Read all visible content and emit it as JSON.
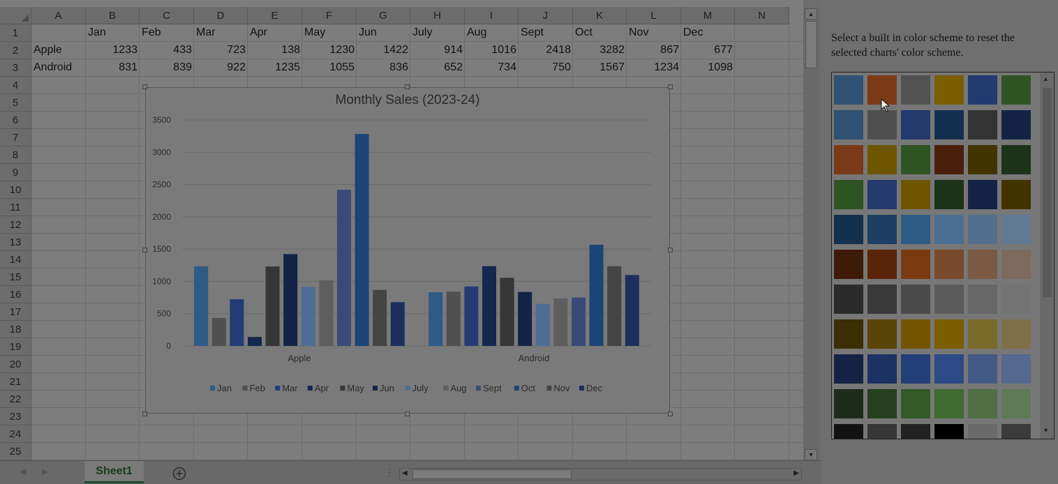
{
  "columns": [
    "A",
    "B",
    "C",
    "D",
    "E",
    "F",
    "G",
    "H",
    "I",
    "J",
    "K",
    "L",
    "M",
    "N"
  ],
  "rows": [
    "1",
    "2",
    "3",
    "4",
    "5",
    "6",
    "7",
    "8",
    "9",
    "10",
    "11",
    "12",
    "13",
    "14",
    "15",
    "16",
    "17",
    "18",
    "19",
    "20",
    "21",
    "22",
    "23",
    "24",
    "25"
  ],
  "table": {
    "header": [
      "Jan",
      "Feb",
      "Mar",
      "Apr",
      "May",
      "Jun",
      "July",
      "Aug",
      "Sept",
      "Oct",
      "Nov",
      "Dec"
    ],
    "data": [
      {
        "label": "Apple",
        "values": [
          "1233",
          "433",
          "723",
          "138",
          "1230",
          "1422",
          "914",
          "1016",
          "2418",
          "3282",
          "867",
          "677"
        ]
      },
      {
        "label": "Android",
        "values": [
          "831",
          "839",
          "922",
          "1235",
          "1055",
          "836",
          "652",
          "734",
          "750",
          "1567",
          "1234",
          "1098"
        ]
      }
    ]
  },
  "chart_data": {
    "type": "bar",
    "title": "Monthly Sales (2023-24)",
    "categories": [
      "Apple",
      "Android"
    ],
    "series": [
      {
        "name": "Jan",
        "color": "#2e5a86",
        "values": [
          1233,
          831
        ]
      },
      {
        "name": "Feb",
        "color": "#4f4f4f",
        "values": [
          433,
          839
        ]
      },
      {
        "name": "Mar",
        "color": "#233c78",
        "values": [
          723,
          922
        ]
      },
      {
        "name": "Apr",
        "color": "#142850",
        "values": [
          138,
          1235
        ]
      },
      {
        "name": "May",
        "color": "#363636",
        "values": [
          1230,
          1055
        ]
      },
      {
        "name": "Jun",
        "color": "#142345",
        "values": [
          1422,
          836
        ]
      },
      {
        "name": "July",
        "color": "#4e6d94",
        "values": [
          914,
          652
        ]
      },
      {
        "name": "Aug",
        "color": "#5e5e5e",
        "values": [
          1016,
          734
        ]
      },
      {
        "name": "Sept",
        "color": "#3a4a78",
        "values": [
          2418,
          750
        ]
      },
      {
        "name": "Oct",
        "color": "#1c4474",
        "values": [
          3282,
          1567
        ]
      },
      {
        "name": "Nov",
        "color": "#444444",
        "values": [
          867,
          1234
        ]
      },
      {
        "name": "Dec",
        "color": "#1c2f5c",
        "values": [
          677,
          1098
        ]
      }
    ],
    "ylim": [
      0,
      3500
    ],
    "yticks": [
      "0",
      "500",
      "1000",
      "1500",
      "2000",
      "2500",
      "3000",
      "3500"
    ],
    "grid": true,
    "legend": "bottom"
  },
  "sheet_tab": "Sheet1",
  "add_sheet_icon": "plus-circle-icon",
  "pane": {
    "description": "Select a built in color scheme to reset the selected charts' color scheme."
  },
  "palette": [
    [
      "#2f5173",
      "#7a3a18",
      "#525252",
      "#7a5e00",
      "#233a6e",
      "#2f5424"
    ],
    [
      "#2f5173",
      "#4f4f4f",
      "#233a6e",
      "#14304f",
      "#333333",
      "#142345"
    ],
    [
      "#7a3a18",
      "#6e5500",
      "#2f5424",
      "#4a1f0c",
      "#433300",
      "#1c331a"
    ],
    [
      "#2f5424",
      "#233a6e",
      "#6e5500",
      "#1c331a",
      "#142345",
      "#433300"
    ],
    [
      "#14304f",
      "#1c3e62",
      "#2e5a86",
      "#4a6e92",
      "#536f8e",
      "#607a94"
    ],
    [
      "#3e1a08",
      "#5a2408",
      "#7a3a10",
      "#7a4a2c",
      "#7a5a44",
      "#7f6a5e"
    ],
    [
      "#2b2b2b",
      "#3a3a3a",
      "#4a4a4a",
      "#5a5a5a",
      "#666666",
      "#737373"
    ],
    [
      "#3c2d05",
      "#5a4306",
      "#735500",
      "#7a5e00",
      "#7a6a2a",
      "#807048"
    ],
    [
      "#142345",
      "#1c3262",
      "#233f7a",
      "#2c4a86",
      "#445a86",
      "#55698e"
    ],
    [
      "#1e2a1a",
      "#263f1f",
      "#315a26",
      "#3f6a30",
      "#526e44",
      "#5e7a56"
    ],
    [
      "#121212",
      "#363636",
      "#222222",
      "#000000",
      "#6a6a6a",
      "#3a3a3a"
    ]
  ]
}
